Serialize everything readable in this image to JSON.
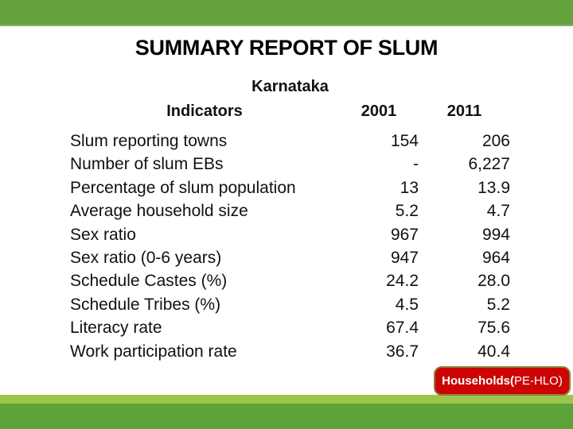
{
  "slide": {
    "title": "SUMMARY REPORT OF SLUM",
    "region_label": "Karnataka",
    "table": {
      "headers": {
        "indicators": "Indicators",
        "y2001": "2001",
        "y2011": "2011"
      },
      "rows": [
        {
          "label": "Slum reporting towns",
          "v2001": "154",
          "v2011": "206"
        },
        {
          "label": "Number of slum EBs",
          "v2001": "-",
          "v2011": "6,227"
        },
        {
          "label": "Percentage of slum population",
          "v2001": "13",
          "v2011": "13.9"
        },
        {
          "label": "Average household size",
          "v2001": "5.2",
          "v2011": "4.7"
        },
        {
          "label": "Sex ratio",
          "v2001": "967",
          "v2011": "994"
        },
        {
          "label": "Sex ratio (0-6 years)",
          "v2001": "947",
          "v2011": "964"
        },
        {
          "label": "Schedule Castes (%)",
          "v2001": "24.2",
          "v2011": "28.0"
        },
        {
          "label": "Schedule Tribes (%)",
          "v2001": "4.5",
          "v2011": "5.2"
        },
        {
          "label": "Literacy rate",
          "v2001": "67.4",
          "v2011": "75.6"
        },
        {
          "label": "Work participation rate",
          "v2001": "36.7",
          "v2011": "40.4"
        }
      ]
    },
    "badge": {
      "bold_part": "Households(",
      "regular_part": "PE-HLO)"
    },
    "colors": {
      "bar_green": "#64a33c",
      "bottom_green": "#5ea23a",
      "highlight_green": "#9ec54b",
      "badge_red": "#cc0404",
      "badge_border": "#8f7c3b",
      "text": "#111111"
    }
  }
}
